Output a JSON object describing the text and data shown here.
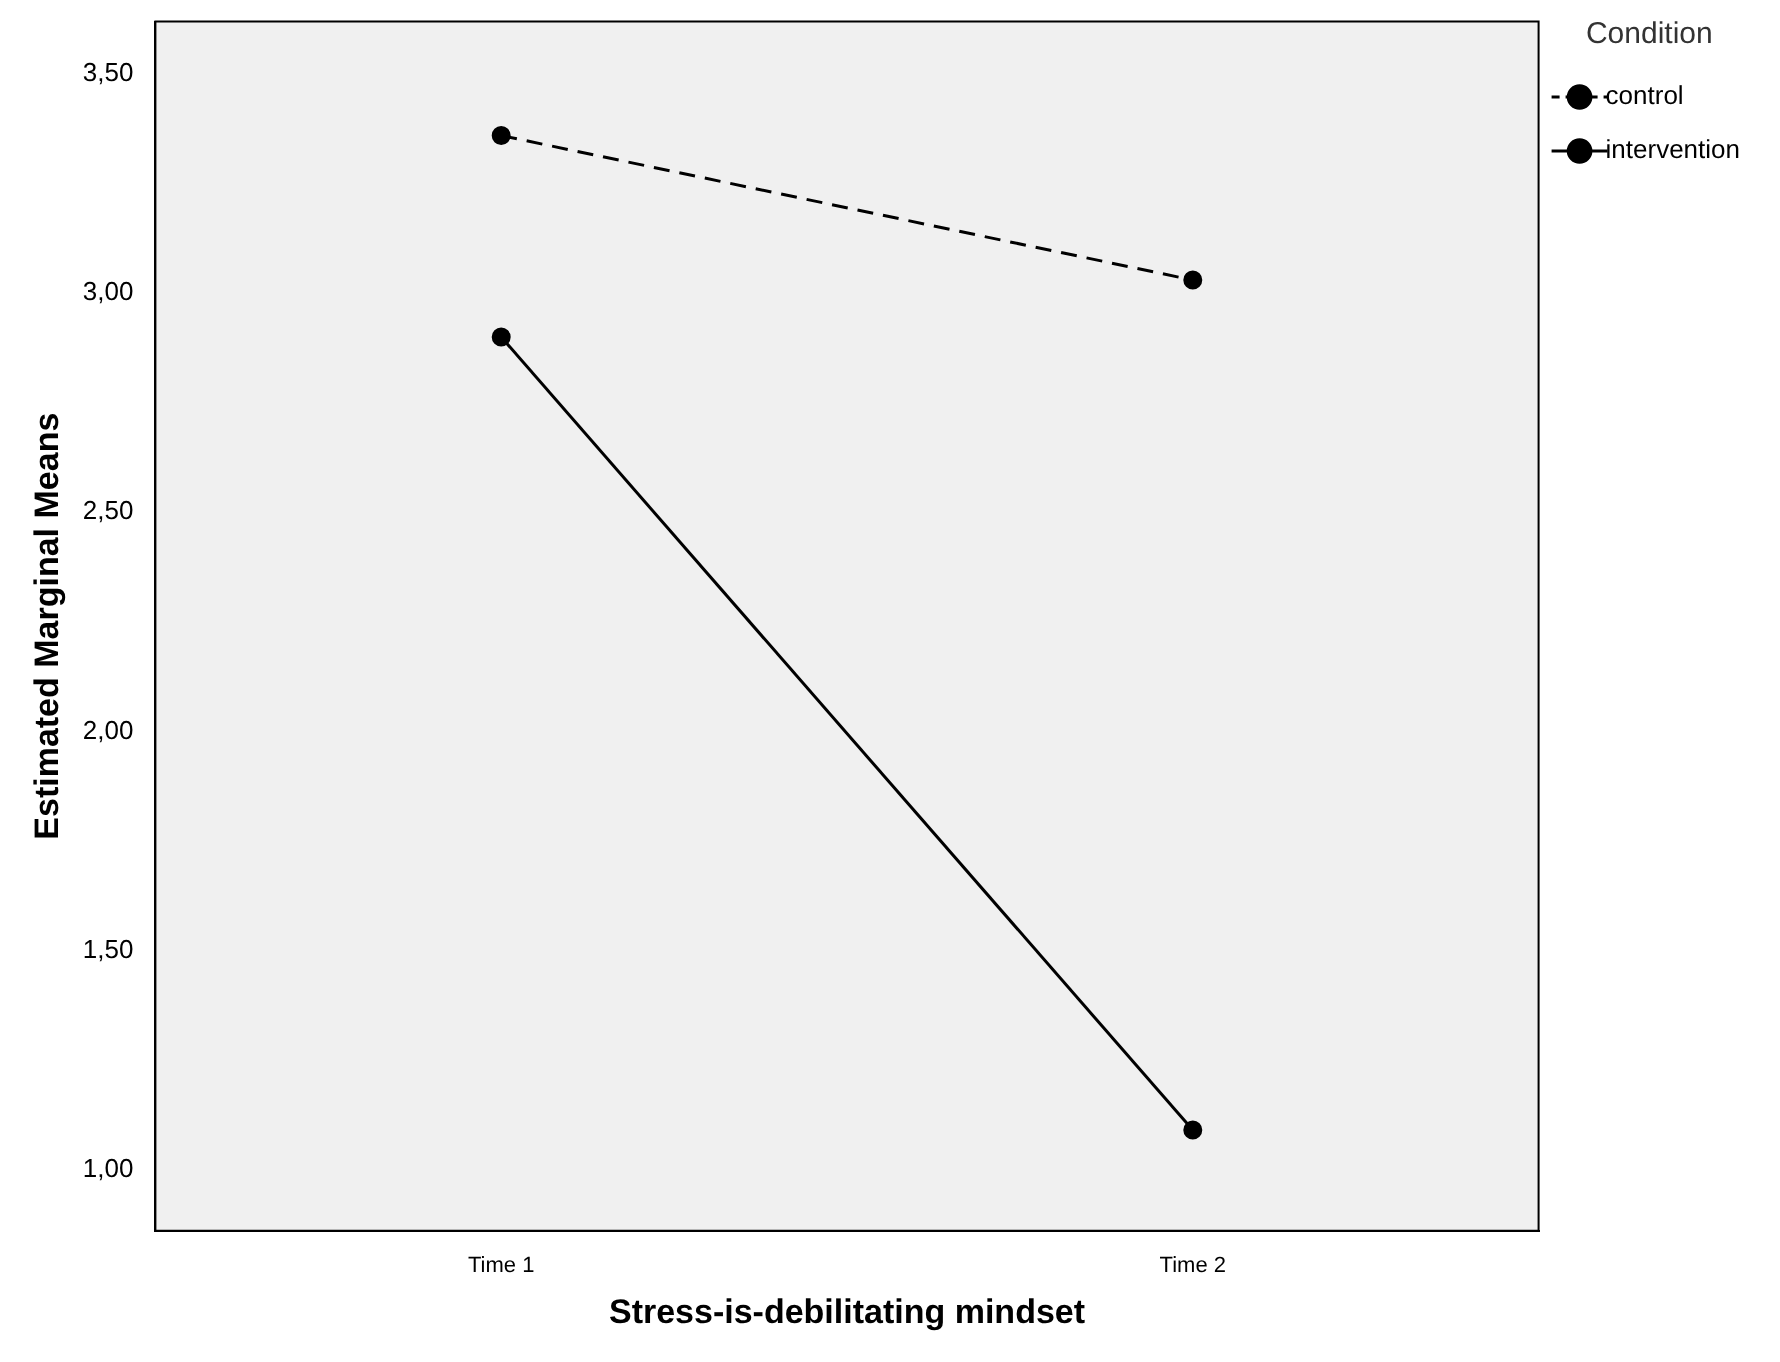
{
  "chart_data": {
    "type": "line",
    "xlabel": "Stress-is-debilitating mindset",
    "ylabel": "Estimated Marginal Means",
    "legend_title": "Condition",
    "categories": [
      "Time 1",
      "Time 2"
    ],
    "series": [
      {
        "name": "control",
        "color": "#000000",
        "values": [
          3.36,
          3.03
        ],
        "line_style": "dashed"
      },
      {
        "name": "intervention",
        "color": "#000000",
        "values": [
          2.9,
          1.09
        ],
        "line_style": "solid"
      }
    ],
    "ylim": [
      0.86,
      3.62
    ],
    "yticks": [
      {
        "value": 1,
        "label": "1,00"
      },
      {
        "value": 1.5,
        "label": "1,50"
      },
      {
        "value": 2,
        "label": "2,00"
      },
      {
        "value": 2.5,
        "label": "2,50"
      },
      {
        "value": 3,
        "label": "3,00"
      },
      {
        "value": 3.5,
        "label": "3,50"
      }
    ],
    "grid": false,
    "legend": "top right",
    "marker": "circle"
  }
}
